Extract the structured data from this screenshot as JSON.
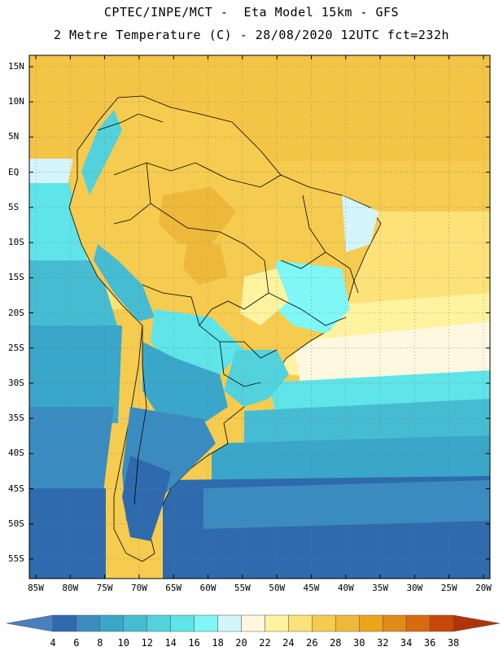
{
  "header": {
    "title_line1": "CPTEC/INPE/MCT -  Eta Model 15km - GFS",
    "title_line2": "2 Metre Temperature (C) - 28/08/2020 12UTC fct=232h"
  },
  "map": {
    "lat_labels": [
      "15N",
      "10N",
      "5N",
      "EQ",
      "5S",
      "10S",
      "15S",
      "20S",
      "25S",
      "30S",
      "35S",
      "40S",
      "45S",
      "50S",
      "55S"
    ],
    "lon_labels": [
      "85W",
      "80W",
      "75W",
      "70W",
      "65W",
      "60W",
      "55W",
      "50W",
      "45W",
      "40W",
      "35W",
      "30W",
      "25W",
      "20W"
    ],
    "lat_values": [
      15,
      10,
      5,
      0,
      -5,
      -10,
      -15,
      -20,
      -25,
      -30,
      -35,
      -40,
      -45,
      -50,
      -55
    ],
    "lon_values": [
      -85,
      -80,
      -75,
      -70,
      -65,
      -60,
      -55,
      -50,
      -45,
      -40,
      -35,
      -30,
      -25,
      -20
    ],
    "grid": "dotted",
    "variable": "2 Metre Temperature (C)"
  },
  "colorbar": {
    "labels": [
      "4",
      "6",
      "8",
      "10",
      "12",
      "14",
      "16",
      "18",
      "20",
      "22",
      "24",
      "26",
      "28",
      "30",
      "32",
      "34",
      "36",
      "38"
    ],
    "colors": [
      "#4a7fbf",
      "#2e6aad",
      "#3a8cc0",
      "#3aa6c9",
      "#46bcd3",
      "#52d2dc",
      "#5fe4e8",
      "#7ff7f7",
      "#d4f5fb",
      "#fff8e0",
      "#fff3a0",
      "#fde27a",
      "#f5cb50",
      "#eeb83a",
      "#eaa51a",
      "#e08a18",
      "#d96a10",
      "#c84808",
      "#b03408"
    ]
  }
}
